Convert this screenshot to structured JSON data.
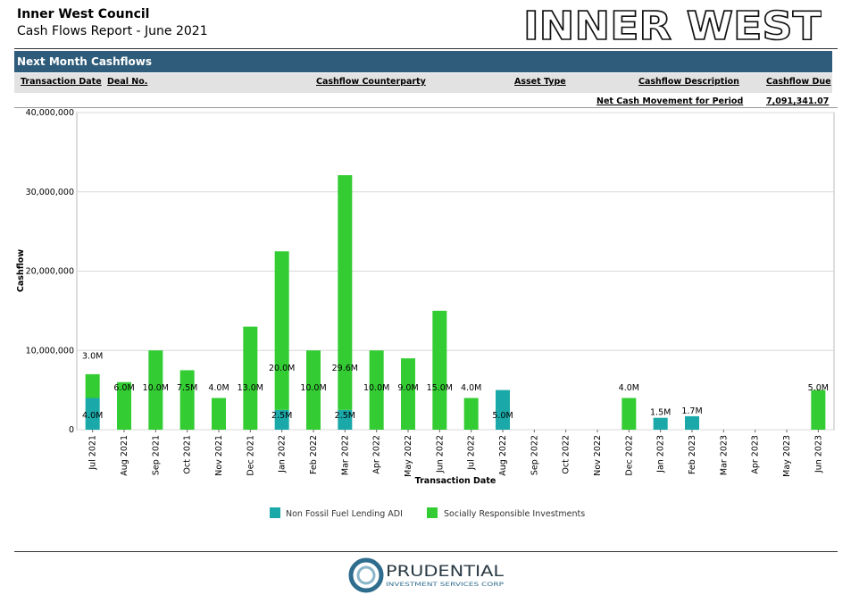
{
  "header": {
    "org_name": "Inner West Council",
    "report_title": "Cash Flows Report - June 2021",
    "brand_logo_text": "INNER WEST"
  },
  "section": {
    "title": "Next Month Cashflows"
  },
  "columns": [
    "Transaction Date",
    "Deal No.",
    "Cashflow Counterparty",
    "Asset Type",
    "Cashflow Description",
    "Cashflow Due"
  ],
  "summary": {
    "label": "Net Cash Movement for Period",
    "value": "7,091,341.07"
  },
  "footer": {
    "company_name": "PRUDENTIAL",
    "company_sub": "INVESTMENT SERVICES CORP"
  },
  "colors": {
    "section_bar": "#2e5c7a",
    "series_teal": "#1aa9a8",
    "series_green": "#33cc33"
  },
  "chart_data": {
    "type": "bar",
    "stacked": true,
    "xlabel": "Transaction Date",
    "ylabel": "Cashflow",
    "ylim": [
      0,
      40000000
    ],
    "yticks": [
      0,
      10000000,
      20000000,
      30000000,
      40000000
    ],
    "ytick_labels": [
      "0",
      "10,000,000",
      "20,000,000",
      "30,000,000",
      "40,000,000"
    ],
    "grid": true,
    "legend_position": "bottom",
    "categories": [
      "Jul 2021",
      "Aug 2021",
      "Sep 2021",
      "Oct 2021",
      "Nov 2021",
      "Dec 2021",
      "Jan 2022",
      "Feb 2022",
      "Mar 2022",
      "Apr 2022",
      "May 2022",
      "Jun 2022",
      "Jul 2022",
      "Aug 2022",
      "Sep 2022",
      "Oct 2022",
      "Nov 2022",
      "Dec 2022",
      "Jan 2023",
      "Feb 2023",
      "Mar 2023",
      "Apr 2023",
      "May 2023",
      "Jun 2023"
    ],
    "series": [
      {
        "name": "Non Fossil Fuel Lending ADI",
        "color": "#1aa9a8",
        "values": [
          4000000,
          0,
          0,
          0,
          0,
          0,
          2500000,
          0,
          2500000,
          0,
          0,
          0,
          0,
          5000000,
          0,
          0,
          0,
          0,
          1500000,
          1700000,
          0,
          0,
          0,
          0
        ],
        "labels": [
          "4.0M",
          "",
          "",
          "",
          "",
          "",
          "2.5M",
          "",
          "2.5M",
          "",
          "",
          "",
          "",
          "5.0M",
          "",
          "",
          "",
          "",
          "1.5M",
          "1.7M",
          "",
          "",
          "",
          ""
        ]
      },
      {
        "name": "Socially Responsible Investments",
        "color": "#33cc33",
        "values": [
          3000000,
          6000000,
          10000000,
          7500000,
          4000000,
          13000000,
          20000000,
          10000000,
          29600000,
          10000000,
          9000000,
          15000000,
          4000000,
          0,
          0,
          0,
          0,
          4000000,
          0,
          0,
          0,
          0,
          0,
          5000000
        ],
        "labels": [
          "3.0M",
          "6.0M",
          "10.0M",
          "7.5M",
          "4.0M",
          "13.0M",
          "20.0M",
          "10.0M",
          "29.6M",
          "10.0M",
          "9.0M",
          "15.0M",
          "4.0M",
          "",
          "",
          "",
          "",
          "4.0M",
          "",
          "",
          "",
          "",
          "",
          "5.0M"
        ]
      }
    ]
  }
}
